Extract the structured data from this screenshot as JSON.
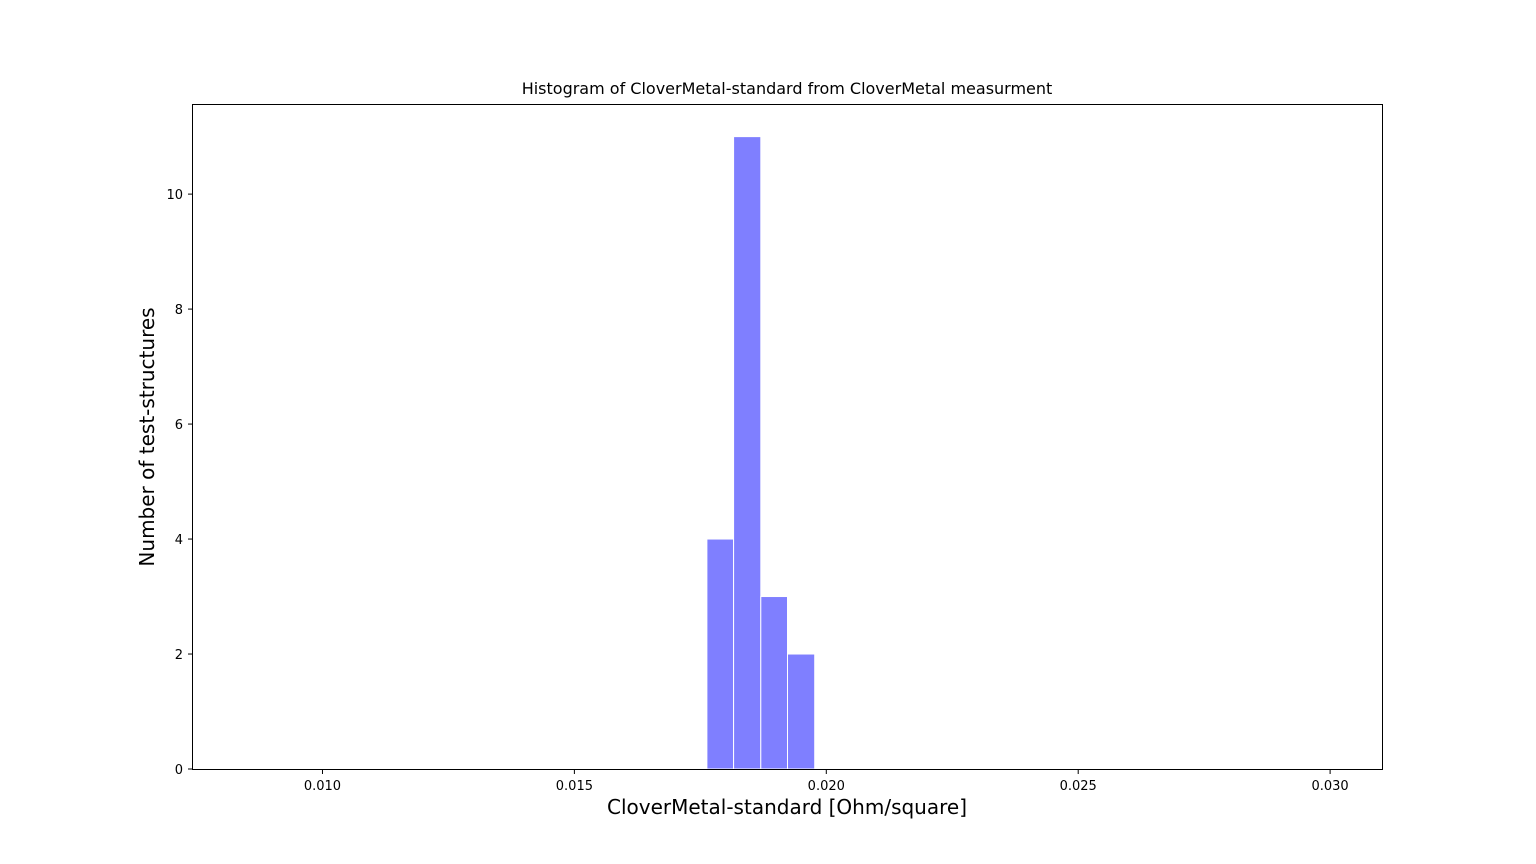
{
  "chart_data": {
    "type": "bar",
    "title": "Histogram of CloverMetal-standard from CloverMetal measurment",
    "xlabel": "CloverMetal-standard [Ohm/square]",
    "ylabel": "Number of test-structures",
    "xlim": [
      0.00743,
      0.03103
    ],
    "ylim": [
      0,
      11.55
    ],
    "grid": false,
    "x_ticks": [
      0.01,
      0.015,
      0.02,
      0.025,
      0.03
    ],
    "x_tick_labels": [
      "0.010",
      "0.015",
      "0.020",
      "0.025",
      "0.030"
    ],
    "y_ticks": [
      0,
      2,
      4,
      6,
      8,
      10
    ],
    "y_tick_labels": [
      "0",
      "2",
      "4",
      "6",
      "8",
      "10"
    ],
    "bins": [
      {
        "start": 0.01763,
        "end": 0.01816,
        "count": 4
      },
      {
        "start": 0.01816,
        "end": 0.0187,
        "count": 11
      },
      {
        "start": 0.0187,
        "end": 0.01923,
        "count": 3
      },
      {
        "start": 0.01923,
        "end": 0.01977,
        "count": 2
      }
    ],
    "bar_color": "#7f7fff",
    "bar_edge_color": "#ffffff"
  }
}
